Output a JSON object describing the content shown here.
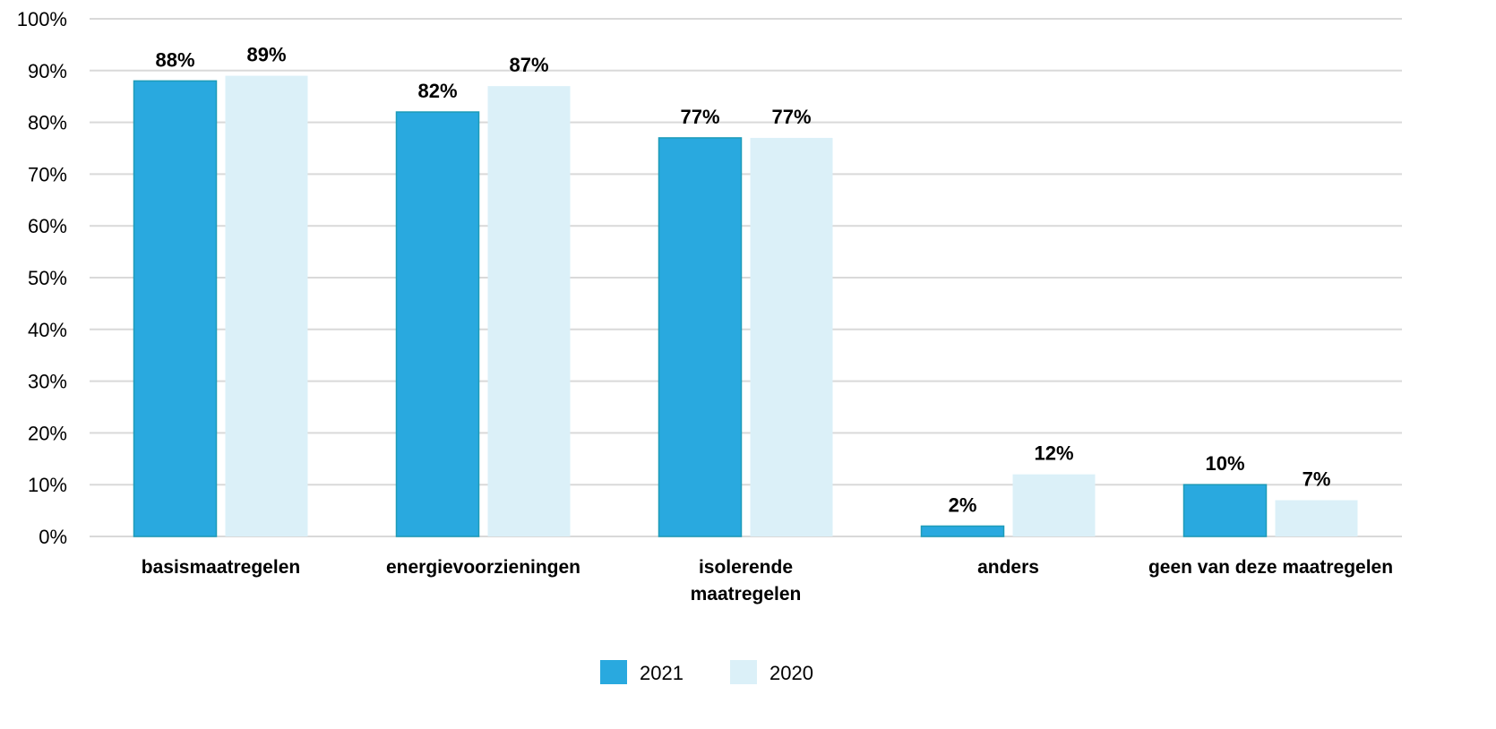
{
  "chart_data": {
    "type": "bar",
    "title": "",
    "xlabel": "",
    "ylabel": "",
    "categories": [
      [
        "basismaatregelen"
      ],
      [
        "energievoorzieningen"
      ],
      [
        "isolerende",
        "maatregelen"
      ],
      [
        "anders"
      ],
      [
        "geen van deze maatregelen"
      ]
    ],
    "series": [
      {
        "name": "2021",
        "values": [
          88,
          82,
          77,
          2,
          10
        ],
        "labels": [
          "88%",
          "82%",
          "77%",
          "2%",
          "10%"
        ],
        "color": "#29a9df"
      },
      {
        "name": "2020",
        "values": [
          89,
          87,
          77,
          12,
          7
        ],
        "labels": [
          "89%",
          "87%",
          "77%",
          "12%",
          "7%"
        ],
        "color": "#dbf0f8"
      }
    ],
    "ylim": [
      0,
      100
    ],
    "yticks": [
      "0%",
      "10%",
      "20%",
      "30%",
      "40%",
      "50%",
      "60%",
      "70%",
      "80%",
      "90%",
      "100%"
    ],
    "grid": true,
    "legend_position": "bottom-center"
  }
}
